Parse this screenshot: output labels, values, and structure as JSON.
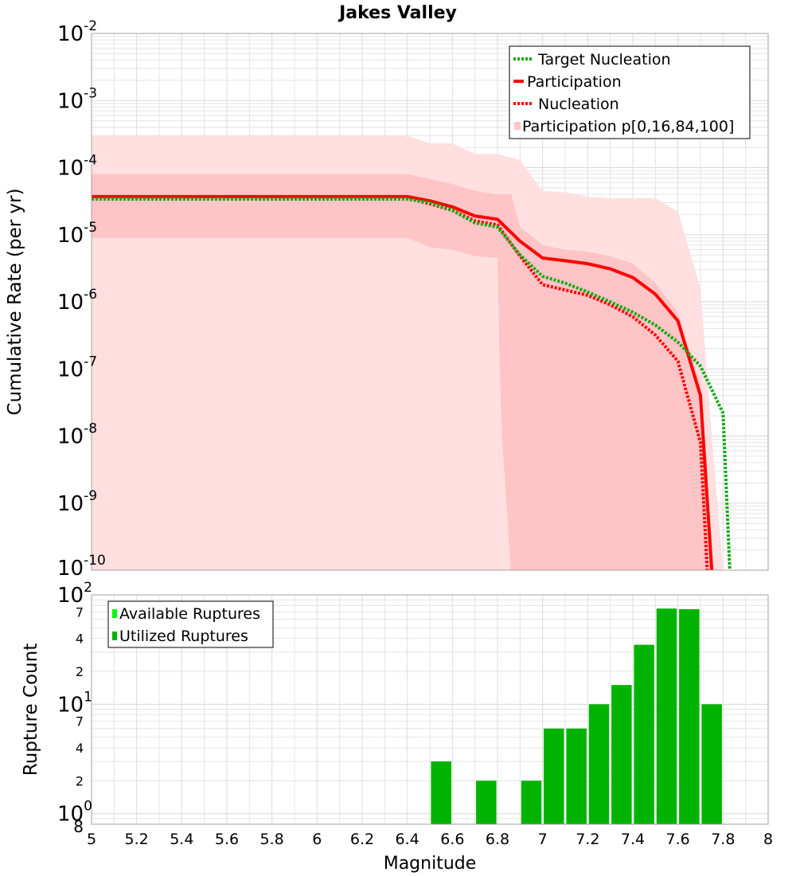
{
  "figure": {
    "title": "Jakes Valley",
    "xlabel": "Magnitude"
  },
  "colors": {
    "target": "#11aa11",
    "participation": "#ff0000",
    "nucleation": "#ff0000",
    "band_outer": "#ffdfe0",
    "band_inner": "#ffc4c6",
    "utilized_bar": "#00b300",
    "available_bar": "#00ff00",
    "grid": "#e4e4e4"
  },
  "chart_data": [
    {
      "type": "line",
      "ylabel": "Cumulative Rate (per yr)",
      "xlim": [
        5,
        8
      ],
      "ylim": [
        1e-10,
        0.01
      ],
      "yscale": "log",
      "grid": true,
      "legend_position": "top-right",
      "y_tick_labels": [
        {
          "base": "10",
          "exp": "-2"
        },
        {
          "base": "10",
          "exp": "-3"
        },
        {
          "base": "10",
          "exp": "-4"
        },
        {
          "base": "10",
          "exp": "-5"
        },
        {
          "base": "10",
          "exp": "-6"
        },
        {
          "base": "10",
          "exp": "-7"
        },
        {
          "base": "10",
          "exp": "-8"
        },
        {
          "base": "10",
          "exp": "-9"
        },
        {
          "base": "10",
          "exp": "-10"
        }
      ],
      "legend": [
        "Target Nucleation",
        "Participation",
        "Nucleation",
        "Participation p[0,16,84,100]"
      ],
      "x": [
        5.0,
        6.4,
        6.5,
        6.6,
        6.7,
        6.8,
        6.9,
        7.0,
        7.1,
        7.2,
        7.3,
        7.4,
        7.5,
        7.6,
        7.7,
        7.8
      ],
      "series": [
        {
          "name": "Target Nucleation",
          "style": "dotted",
          "x": [
            5.0,
            6.4,
            6.5,
            6.6,
            6.7,
            6.8,
            6.9,
            7.0,
            7.1,
            7.2,
            7.3,
            7.4,
            7.5,
            7.6,
            7.7,
            7.8,
            7.83
          ],
          "y": [
            3.4e-05,
            3.4e-05,
            3e-05,
            2.3e-05,
            1.5e-05,
            1.3e-05,
            5e-06,
            2.4e-06,
            1.9e-06,
            1.4e-06,
            1e-06,
            7e-07,
            4.5e-07,
            2.5e-07,
            1.1e-07,
            2.2e-08,
            1e-10
          ]
        },
        {
          "name": "Participation",
          "style": "solid",
          "x": [
            5.0,
            6.4,
            6.5,
            6.6,
            6.7,
            6.8,
            6.9,
            7.0,
            7.1,
            7.2,
            7.3,
            7.4,
            7.5,
            7.6,
            7.7,
            7.75
          ],
          "y": [
            3.7e-05,
            3.7e-05,
            3.2e-05,
            2.6e-05,
            1.9e-05,
            1.7e-05,
            8e-06,
            4.5e-06,
            4.1e-06,
            3.7e-06,
            3.1e-06,
            2.3e-06,
            1.3e-06,
            5.2e-07,
            4e-08,
            1e-10
          ]
        },
        {
          "name": "Nucleation",
          "style": "dotted",
          "x": [
            5.0,
            6.4,
            6.5,
            6.6,
            6.7,
            6.8,
            6.9,
            7.0,
            7.1,
            7.2,
            7.3,
            7.4,
            7.5,
            7.6,
            7.7,
            7.73
          ],
          "y": [
            3.5e-05,
            3.5e-05,
            2.9e-05,
            2.3e-05,
            1.6e-05,
            1.4e-05,
            4.8e-06,
            1.8e-06,
            1.5e-06,
            1.25e-06,
            9e-07,
            6e-07,
            3.2e-07,
            1.3e-07,
            8e-09,
            1e-10
          ]
        }
      ],
      "bands": [
        {
          "name": "p0-p100",
          "x": [
            5.0,
            6.4,
            6.5,
            6.6,
            6.7,
            6.8,
            6.9,
            7.0,
            7.1,
            7.2,
            7.3,
            7.4,
            7.5,
            7.6,
            7.7,
            7.75,
            7.8
          ],
          "upper": [
            0.0003,
            0.0003,
            0.00023,
            0.00023,
            0.00016,
            0.00016,
            0.00013,
            4.5e-05,
            4.3e-05,
            3.7e-05,
            3.5e-05,
            3.5e-05,
            3.5e-05,
            2.2e-05,
            1.6e-06,
            1e-08,
            1e-10
          ],
          "lower": [
            1e-10,
            1e-10,
            1e-10,
            1e-10,
            1e-10,
            1e-10,
            1e-10,
            1e-10,
            1e-10,
            1e-10,
            1e-10,
            1e-10,
            1e-10,
            1e-10,
            1e-10,
            1e-10,
            1e-10
          ]
        },
        {
          "name": "p16-p84",
          "x": [
            5.0,
            6.4,
            6.5,
            6.6,
            6.7,
            6.8,
            6.81,
            6.82,
            6.86,
            6.9,
            7.0,
            7.1,
            7.2,
            7.3,
            7.4,
            7.5,
            7.6,
            7.7,
            7.75
          ],
          "upper": [
            8e-05,
            8e-05,
            6.8e-05,
            5.7e-05,
            4.5e-05,
            4e-05,
            4e-05,
            4e-05,
            4e-05,
            1.3e-05,
            7e-06,
            6e-06,
            5.6e-06,
            4.8e-06,
            3.7e-06,
            1.9e-06,
            7e-07,
            6e-08,
            1e-10
          ],
          "lower": [
            9e-06,
            9e-06,
            6.5e-06,
            6e-06,
            4.8e-06,
            4.5e-06,
            1e-07,
            1e-08,
            1e-10,
            1e-10,
            1e-10,
            1e-10,
            1e-10,
            1e-10,
            1e-10,
            1e-10,
            1e-10,
            1e-10,
            1e-10
          ]
        }
      ]
    },
    {
      "type": "bar",
      "ylabel": "Rupture Count",
      "xlim": [
        5,
        8
      ],
      "ylim": [
        0.8,
        100
      ],
      "yscale": "log",
      "grid": true,
      "legend_position": "top-left",
      "y_tick_labels": [
        {
          "base": "10",
          "exp": "2"
        },
        {
          "base": "10",
          "exp": "1"
        },
        {
          "base": "10",
          "exp": "0"
        }
      ],
      "y_minor_tick_labels": [
        {
          "value": 70,
          "label": "7"
        },
        {
          "value": 40,
          "label": "4"
        },
        {
          "value": 20,
          "label": "2"
        },
        {
          "value": 7,
          "label": "7"
        },
        {
          "value": 4,
          "label": "4"
        },
        {
          "value": 2,
          "label": "2"
        },
        {
          "value": 0.8,
          "label": "8"
        }
      ],
      "legend": [
        "Available Ruptures",
        "Utilized Ruptures"
      ],
      "x": [
        6.55,
        6.65,
        6.75,
        6.85,
        6.95,
        7.05,
        7.15,
        7.25,
        7.35,
        7.45,
        7.55,
        7.65,
        7.75
      ],
      "series": [
        {
          "name": "Utilized Ruptures",
          "values": [
            3,
            0,
            2,
            0,
            2,
            6,
            6,
            10,
            15,
            35,
            75,
            74,
            10
          ]
        }
      ]
    }
  ],
  "x_tick_labels": [
    "5",
    "5.2",
    "5.4",
    "5.6",
    "5.8",
    "6",
    "6.2",
    "6.4",
    "6.6",
    "6.8",
    "7",
    "7.2",
    "7.4",
    "7.6",
    "7.8",
    "8"
  ]
}
